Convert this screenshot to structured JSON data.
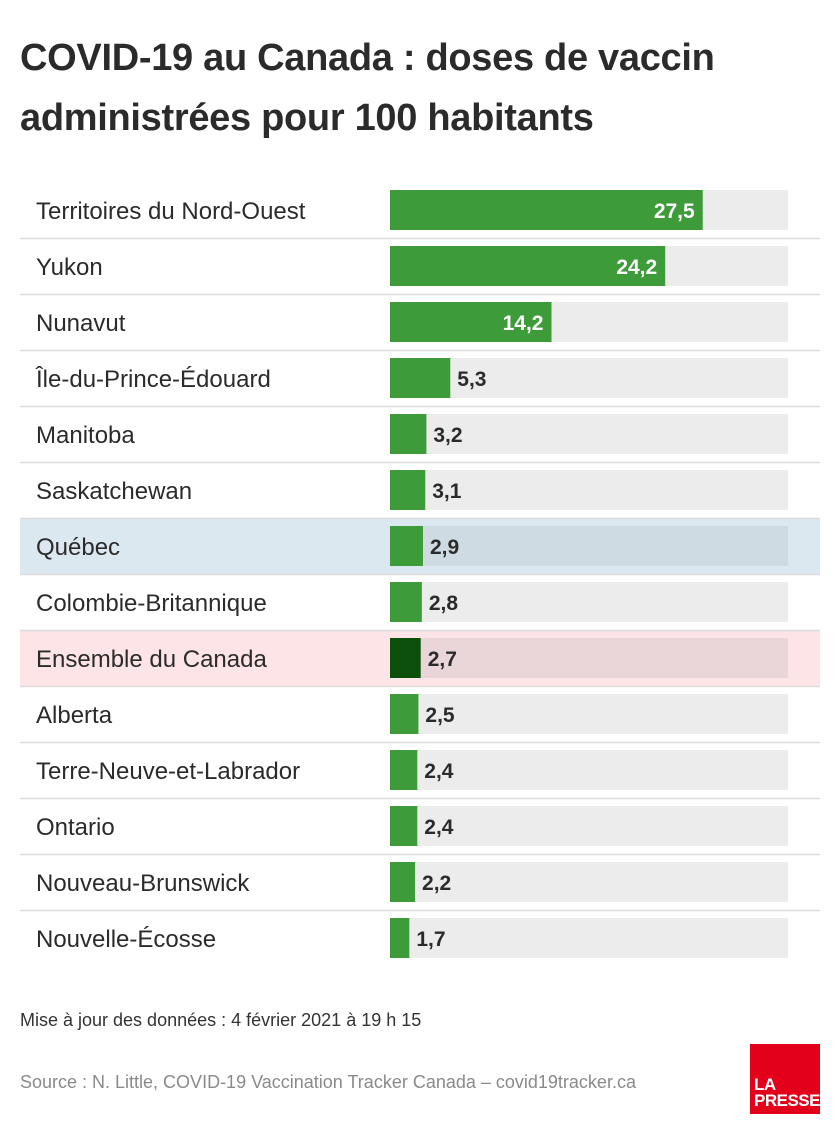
{
  "title": "COVID-19 au Canada : doses de vaccin administrées pour 100 habitants",
  "footnote": "Mise à jour des données : 4 février 2021 à 19 h 15",
  "source": "Source : N. Little, COVID-19 Vaccination Tracker Canada – covid19tracker.ca",
  "logo": {
    "line1": "LA",
    "line2": "PRESSE"
  },
  "colors": {
    "bar": "#3d9b3a",
    "bar_national": "#0b4f0b",
    "track": "#ececec",
    "highlight_quebec": "#dce8f0",
    "highlight_canada": "#fde4e6",
    "label_inside": "#ffffff",
    "label_outside": "#2b2b2b",
    "logo": "#e2001a"
  },
  "chart_data": {
    "type": "bar",
    "orientation": "horizontal",
    "xlim": [
      0,
      35
    ],
    "categories": [
      "Territoires du Nord-Ouest",
      "Yukon",
      "Nunavut",
      "Île-du-Prince-Édouard",
      "Manitoba",
      "Saskatchewan",
      "Québec",
      "Colombie-Britannique",
      "Ensemble du Canada",
      "Alberta",
      "Terre-Neuve-et-Labrador",
      "Ontario",
      "Nouveau-Brunswick",
      "Nouvelle-Écosse"
    ],
    "values": [
      27.5,
      24.2,
      14.2,
      5.3,
      3.2,
      3.1,
      2.9,
      2.8,
      2.7,
      2.5,
      2.4,
      2.4,
      2.2,
      1.7
    ],
    "value_labels": [
      "27,5",
      "24,2",
      "14,2",
      "5,3",
      "3,2",
      "3,1",
      "2,9",
      "2,8",
      "2,7",
      "2,5",
      "2,4",
      "2,4",
      "2,2",
      "1,7"
    ],
    "highlights": [
      {
        "category": "Québec",
        "style": "quebec"
      },
      {
        "category": "Ensemble du Canada",
        "style": "national"
      }
    ]
  }
}
